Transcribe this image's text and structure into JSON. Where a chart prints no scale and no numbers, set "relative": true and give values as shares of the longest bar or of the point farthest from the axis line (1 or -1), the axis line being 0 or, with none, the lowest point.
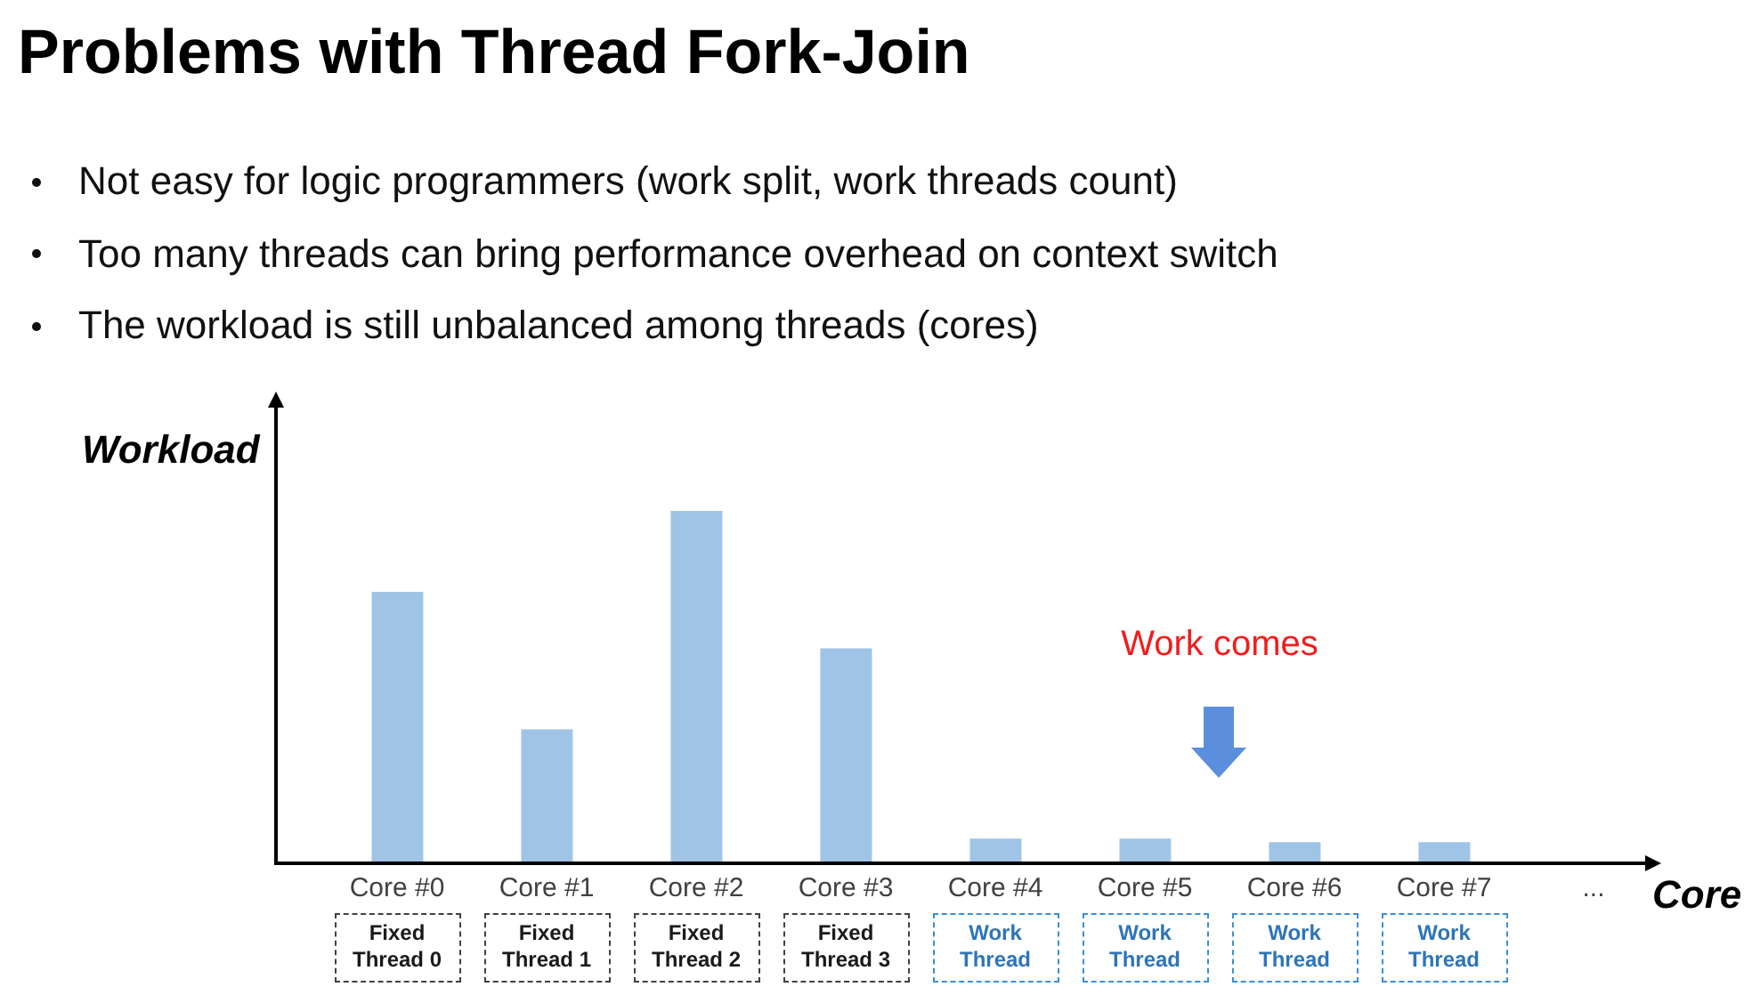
{
  "chart_data": {
    "type": "bar",
    "title": "Problems with Thread Fork-Join",
    "xlabel": "Core",
    "ylabel": "Workload",
    "categories": [
      "Core #0",
      "Core #1",
      "Core #2",
      "Core #3",
      "Core #4",
      "Core #5",
      "Core #6",
      "Core #7",
      "..."
    ],
    "values": [
      0.77,
      0.38,
      1,
      0.61,
      0.07,
      0.07,
      0.06,
      0.06,
      null
    ],
    "color": "#9fc4e6",
    "relative": true,
    "annotations": [
      "Not easy for logic programmers (work split, work threads count)",
      "Too many threads can bring performance overhead on context switch",
      "The workload is still unbalanced among threads (cores)",
      "Work comes",
      "Fixed\nThread 0",
      "Fixed\nThread 1",
      "Fixed\nThread 2",
      "Fixed\nThread 3",
      "Work\nThread",
      "Work\nThread",
      "Work\nThread",
      "Work\nThread"
    ]
  }
}
